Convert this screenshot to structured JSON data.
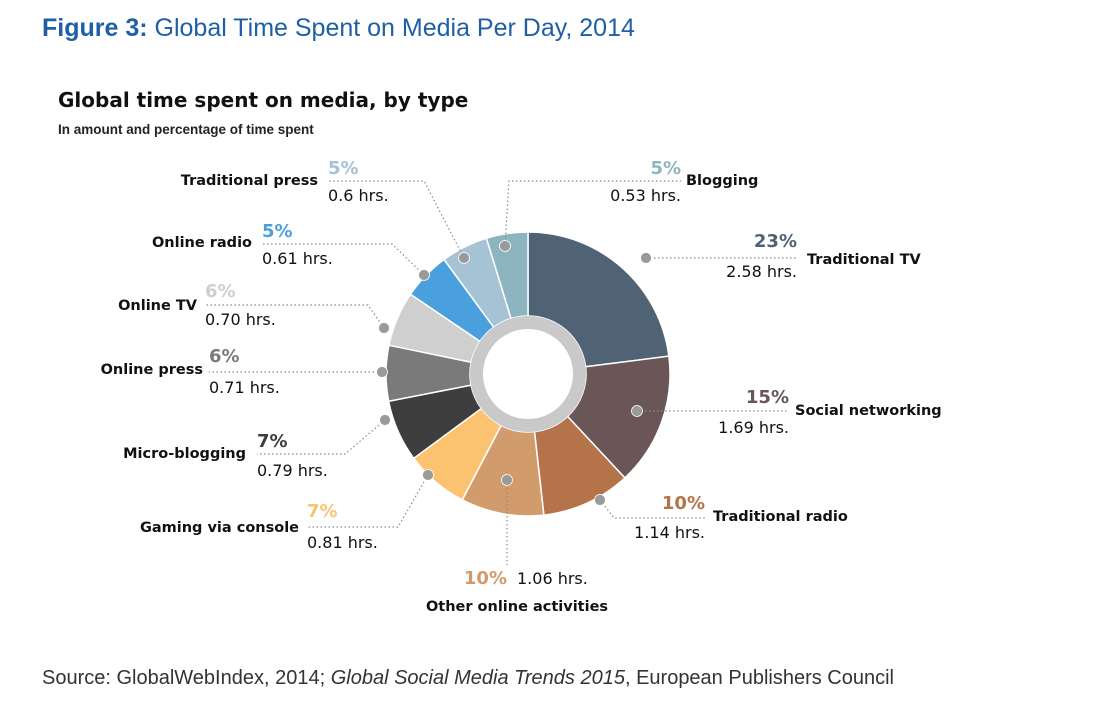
{
  "figure": {
    "label": "Figure 3:",
    "title": "Global Time Spent on Media Per Day, 2014"
  },
  "chart_data": {
    "type": "pie",
    "donut": true,
    "title": "Global time spent on media, by type",
    "subtitle": "In amount and percentage of time spent",
    "slices": [
      {
        "name": "Traditional TV",
        "percent_label": "23%",
        "hours_label": "2.58 hrs.",
        "hours": 2.58,
        "color": "#4f6374"
      },
      {
        "name": "Social networking",
        "percent_label": "15%",
        "hours_label": "1.69 hrs.",
        "hours": 1.69,
        "color": "#6a5657"
      },
      {
        "name": "Traditional radio",
        "percent_label": "10%",
        "hours_label": "1.14 hrs.",
        "hours": 1.14,
        "color": "#b5734a"
      },
      {
        "name": "Other online activities",
        "percent_label": "10%",
        "hours_label": "1.06 hrs.",
        "hours": 1.06,
        "color": "#d29b6c"
      },
      {
        "name": "Gaming via console",
        "percent_label": "7%",
        "hours_label": "0.81 hrs.",
        "hours": 0.81,
        "color": "#fbc270"
      },
      {
        "name": "Micro-blogging",
        "percent_label": "7%",
        "hours_label": "0.79 hrs.",
        "hours": 0.79,
        "color": "#3e3e3e"
      },
      {
        "name": "Online press",
        "percent_label": "6%",
        "hours_label": "0.71 hrs.",
        "hours": 0.71,
        "color": "#7a7a7a"
      },
      {
        "name": "Online TV",
        "percent_label": "6%",
        "hours_label": "0.70 hrs.",
        "hours": 0.7,
        "color": "#cfcfcf"
      },
      {
        "name": "Online radio",
        "percent_label": "5%",
        "hours_label": "0.61 hrs.",
        "hours": 0.61,
        "color": "#4aa0dc"
      },
      {
        "name": "Traditional press",
        "percent_label": "5%",
        "hours_label": "0.6 hrs.",
        "hours": 0.6,
        "color": "#a6c2d5"
      },
      {
        "name": "Blogging",
        "percent_label": "5%",
        "hours_label": "0.53 hrs.",
        "hours": 0.53,
        "color": "#8db5bf"
      }
    ]
  },
  "source": {
    "prefix": "Source: GlobalWebIndex, 2014; ",
    "publication": "Global Social Media Trends 2015",
    "suffix": ", European Publishers Council"
  }
}
